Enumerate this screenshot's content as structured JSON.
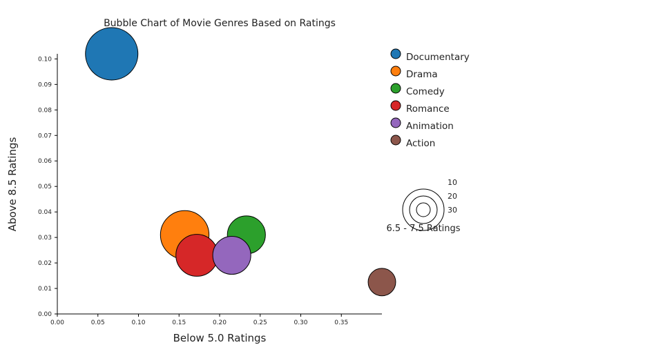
{
  "chart_data": {
    "type": "scatter",
    "title": "Bubble Chart of Movie Genres Based on Ratings",
    "xlabel": "Below 5.0 Ratings",
    "ylabel": "Above 8.5 Ratings",
    "xlim": [
      0,
      0.4
    ],
    "ylim": [
      0,
      0.102
    ],
    "xticks": [
      "0.00",
      "0.05",
      "0.10",
      "0.15",
      "0.20",
      "0.25",
      "0.30",
      "0.35"
    ],
    "yticks": [
      "0.00",
      "0.01",
      "0.02",
      "0.03",
      "0.04",
      "0.05",
      "0.06",
      "0.07",
      "0.08",
      "0.09",
      "0.10"
    ],
    "grid": false,
    "legend_position": "right",
    "series": [
      {
        "name": "Documentary",
        "x": 0.067,
        "y": 0.102,
        "size": 40,
        "color": "#1f77b4"
      },
      {
        "name": "Drama",
        "x": 0.157,
        "y": 0.031,
        "size": 37,
        "color": "#ff7f0e"
      },
      {
        "name": "Comedy",
        "x": 0.233,
        "y": 0.031,
        "size": 29,
        "color": "#2ca02c"
      },
      {
        "name": "Romance",
        "x": 0.172,
        "y": 0.023,
        "size": 32,
        "color": "#d62728"
      },
      {
        "name": "Animation",
        "x": 0.215,
        "y": 0.023,
        "size": 29,
        "color": "#9467bd"
      },
      {
        "name": "Action",
        "x": 0.4,
        "y": 0.0125,
        "size": 21,
        "color": "#8c564b"
      }
    ],
    "size_legend": {
      "title": "6.5 - 7.5 Ratings",
      "values": [
        10,
        20,
        30
      ],
      "labels": [
        "10",
        "20",
        "30"
      ]
    }
  }
}
